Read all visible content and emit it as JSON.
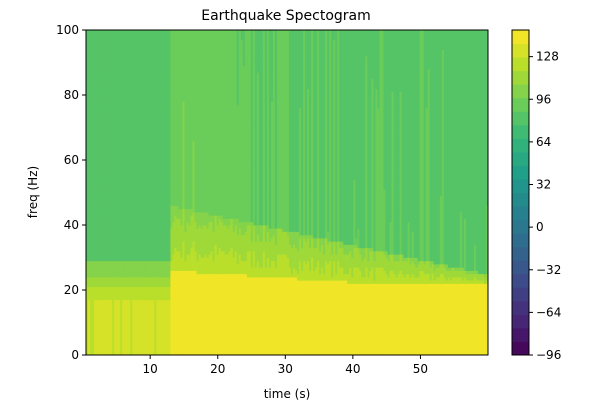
{
  "chart_data": {
    "type": "heatmap",
    "title": "Earthquake Spectogram",
    "xlabel": "time (s)",
    "ylabel": "freq (Hz)",
    "xlim": [
      0.5,
      60
    ],
    "ylim": [
      0,
      100
    ],
    "xticks": [
      10,
      20,
      30,
      40,
      50
    ],
    "yticks": [
      0,
      20,
      40,
      60,
      80,
      100
    ],
    "x_tick_labels": [
      "10",
      "20",
      "30",
      "40",
      "50"
    ],
    "y_tick_labels": [
      "0",
      "20",
      "40",
      "60",
      "80",
      "100"
    ],
    "grid": false,
    "colormap": "viridis",
    "colorbar": {
      "min": -96,
      "max": 148,
      "ticks": [
        128,
        96,
        64,
        32,
        0,
        -32,
        -64,
        -96
      ],
      "tick_labels": [
        "128",
        "96",
        "64",
        "32",
        "0",
        "−32",
        "−64",
        "−96"
      ],
      "levels": 24
    },
    "event_onset_s": 13,
    "regions": [
      {
        "t_range": [
          0.5,
          13
        ],
        "f_range": [
          0,
          17
        ],
        "value": 128
      },
      {
        "t_range": [
          0.5,
          13
        ],
        "f_range": [
          17,
          21
        ],
        "value": 120
      },
      {
        "t_range": [
          0.5,
          13
        ],
        "f_range": [
          21,
          24
        ],
        "value": 110
      },
      {
        "t_range": [
          0.5,
          13
        ],
        "f_range": [
          24,
          29
        ],
        "value": 100
      },
      {
        "t_range": [
          0.5,
          13
        ],
        "f_range": [
          29,
          100
        ],
        "value": 82
      },
      {
        "t_range": [
          13,
          60
        ],
        "f_range": [
          0,
          22
        ],
        "value": 140
      },
      {
        "t_range": [
          13,
          60
        ],
        "f_range": [
          22,
          45
        ],
        "value": 118
      },
      {
        "t_range": [
          13,
          60
        ],
        "f_range": [
          45,
          100
        ],
        "value": 88
      }
    ]
  },
  "colors": {
    "viridis_stops": [
      "#440154",
      "#482878",
      "#3e4989",
      "#31688e",
      "#26828e",
      "#1f9e89",
      "#35b779",
      "#6ece58",
      "#b5de2b",
      "#fde725"
    ]
  }
}
